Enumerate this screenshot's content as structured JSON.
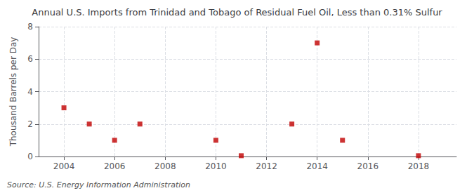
{
  "chart_data": {
    "type": "scatter",
    "title": "Annual U.S. Imports from Trinidad and Tobago of Residual Fuel Oil, Less than 0.31% Sulfur",
    "ylabel": "Thousand Barrels per Day",
    "annotations": [
      "Source: U.S. Energy Information Administration"
    ],
    "x": [
      2004,
      2005,
      2006,
      2007,
      2010,
      2011,
      2013,
      2014,
      2015,
      2018
    ],
    "values": [
      3,
      2,
      1,
      2,
      1,
      0.05,
      2,
      7,
      1,
      0.05
    ],
    "color": "#c00000",
    "marker": "square",
    "xlim": [
      2003,
      2019.5
    ],
    "xticks": [
      2004,
      2006,
      2008,
      2010,
      2012,
      2014,
      2016,
      2018
    ],
    "ylim": [
      0,
      8
    ],
    "yticks": [
      0,
      2,
      4,
      6,
      8
    ],
    "grid": true
  }
}
